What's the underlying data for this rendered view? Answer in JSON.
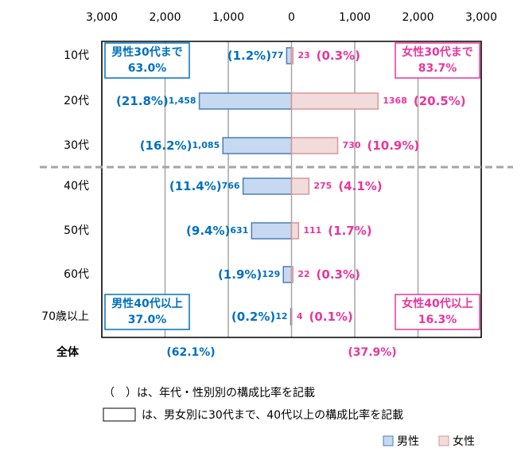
{
  "chart_data": {
    "type": "butterfly",
    "categories": [
      "10代",
      "20代",
      "30代",
      "40代",
      "50代",
      "60代",
      "70歳以上"
    ],
    "xlim": [
      -3000,
      3000
    ],
    "xticks": [
      {
        "value": -3000,
        "label": "3,000"
      },
      {
        "value": -2000,
        "label": "2,000"
      },
      {
        "value": -1000,
        "label": "1,000"
      },
      0,
      {
        "value": 1000,
        "label": "1,000"
      },
      {
        "value": 2000,
        "label": "2,000"
      },
      {
        "value": 3000,
        "label": "3,000"
      }
    ],
    "grid": true,
    "series": [
      {
        "name": "男性",
        "color": "#c6d9f1",
        "side": "left",
        "values": [
          77,
          1458,
          1085,
          766,
          631,
          129,
          12
        ],
        "value_labels": [
          "77",
          "1,458",
          "1,085",
          "766",
          "631",
          "129",
          "12"
        ],
        "shares": [
          1.2,
          21.8,
          16.2,
          11.4,
          9.4,
          1.9,
          0.2
        ],
        "share_labels": [
          "(1.2%)",
          "(21.8%)",
          "(16.2%)",
          "(11.4%)",
          "(9.4%)",
          "(1.9%)",
          "(0.2%)"
        ],
        "total_share": 62.1,
        "total_share_label": "(62.1%)"
      },
      {
        "name": "女性",
        "color": "#f2dcdb",
        "side": "right",
        "values": [
          23,
          1368,
          730,
          275,
          111,
          22,
          4
        ],
        "value_labels": [
          "23",
          "1368",
          "730",
          "275",
          "111",
          "22",
          "4"
        ],
        "shares": [
          0.3,
          20.5,
          10.9,
          4.1,
          1.7,
          0.3,
          0.1
        ],
        "share_labels": [
          "(0.3%)",
          "(20.5%)",
          "(10.9%)",
          "(4.1%)",
          "(1.7%)",
          "(0.3%)",
          "(0.1%)"
        ],
        "total_share": 37.9,
        "total_share_label": "(37.9%)"
      }
    ],
    "total_label": "全体",
    "boxes": [
      {
        "title": "男性30代まで",
        "value": 63.0,
        "label": "63.0%"
      },
      {
        "title": "女性30代まで",
        "value": 83.7,
        "label": "83.7%"
      },
      {
        "title": "男性40代以上",
        "value": 37.0,
        "label": "37.0%"
      },
      {
        "title": "女性40代以上",
        "value": 16.3,
        "label": "16.3%"
      }
    ],
    "notes": [
      "（　）は、年代・性別別の構成比率を記載",
      "は、男女別に30代まで、40代以上の構成比率を記載"
    ]
  }
}
